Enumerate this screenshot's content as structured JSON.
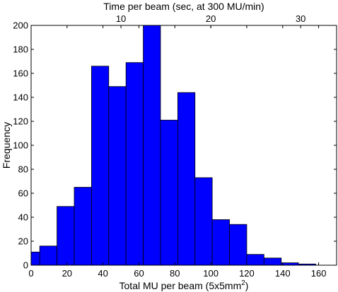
{
  "chart_data": {
    "type": "bar",
    "xlabel": "Total MU per beam (5x5mm",
    "xlabel_superscript": "2",
    "xlabel_suffix": ")",
    "ylabel": "Frequency",
    "top_xlabel": "Time per beam (sec, at 300 MU/min)",
    "xlim": [
      0,
      170
    ],
    "ylim": [
      0,
      200
    ],
    "xticks": [
      "0",
      "20",
      "40",
      "60",
      "80",
      "100",
      "120",
      "140",
      "160"
    ],
    "yticks": [
      "0",
      "20",
      "40",
      "60",
      "80",
      "100",
      "120",
      "140",
      "160",
      "180",
      "200"
    ],
    "top_xticks": [
      "10",
      "20",
      "30"
    ],
    "top_xtick_values_sec": [
      10,
      20,
      30
    ],
    "bar_color": "#0000ff",
    "bin_edges": [
      0,
      4.8,
      14.4,
      24.0,
      33.6,
      43.2,
      52.8,
      62.4,
      72.0,
      81.6,
      91.2,
      100.8,
      110.4,
      120.0,
      129.6,
      139.2,
      148.8,
      158.4,
      163.2
    ],
    "values": [
      11,
      16,
      49,
      65,
      166,
      149,
      169,
      201,
      121,
      144,
      73,
      38,
      34,
      9,
      6,
      2,
      1,
      0
    ],
    "grid": false
  }
}
